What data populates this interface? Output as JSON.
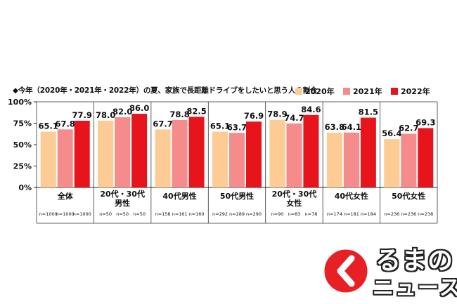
{
  "chart_data": {
    "type": "bar",
    "title": "◆今年（2020年・2021年・2022年）の夏、家族で長距離ドライブをしたいと思う人の割合",
    "ylim": [
      0,
      100
    ],
    "yticks": [
      "0%",
      "25%",
      "50%",
      "75%",
      "100%"
    ],
    "grid": false,
    "legend_position": "top-right",
    "categories": [
      [
        "全体"
      ],
      [
        "20代・30代",
        "男性"
      ],
      [
        "40代男性"
      ],
      [
        "50代男性"
      ],
      [
        "20代・30代",
        "女性"
      ],
      [
        "40代女性"
      ],
      [
        "50代女性"
      ]
    ],
    "series": [
      {
        "name": "2020年",
        "color": "#FDCB94",
        "values": [
          65.1,
          78.0,
          67.7,
          65.1,
          78.9,
          63.8,
          56.4
        ],
        "labels": [
          "65.1",
          "78.0",
          "67.7",
          "65.1",
          "78.9",
          "63.8",
          "56.4"
        ]
      },
      {
        "name": "2021年",
        "color": "#F58B8B",
        "values": [
          67.8,
          82.0,
          78.8,
          63.7,
          74.7,
          64.1,
          62.7
        ],
        "labels": [
          "67.8",
          "82.0",
          "78.8",
          "63.7",
          "74.7",
          "64.1",
          "62.7"
        ]
      },
      {
        "name": "2022年",
        "color": "#E8141B",
        "values": [
          77.9,
          86.0,
          82.5,
          76.9,
          84.6,
          81.5,
          69.3
        ],
        "labels": [
          "77.9",
          "86.0",
          "82.5",
          "76.9",
          "84.6",
          "81.5",
          "69.3"
        ]
      }
    ],
    "sample_sizes": [
      [
        "n=1000",
        "n=1000",
        "n=1000"
      ],
      [
        "n=50",
        "n=50",
        "n=50"
      ],
      [
        "n=158",
        "n=161",
        "n=160"
      ],
      [
        "n=292",
        "n=289",
        "n=290"
      ],
      [
        "n=90",
        "n=83",
        "n=78"
      ],
      [
        "n=174",
        "n=181",
        "n=184"
      ],
      [
        "n=236",
        "n=236",
        "n=238"
      ]
    ]
  },
  "logo": {
    "text_1": "るまの",
    "text_2": "ニュース",
    "primary_color": "#E8141B"
  }
}
